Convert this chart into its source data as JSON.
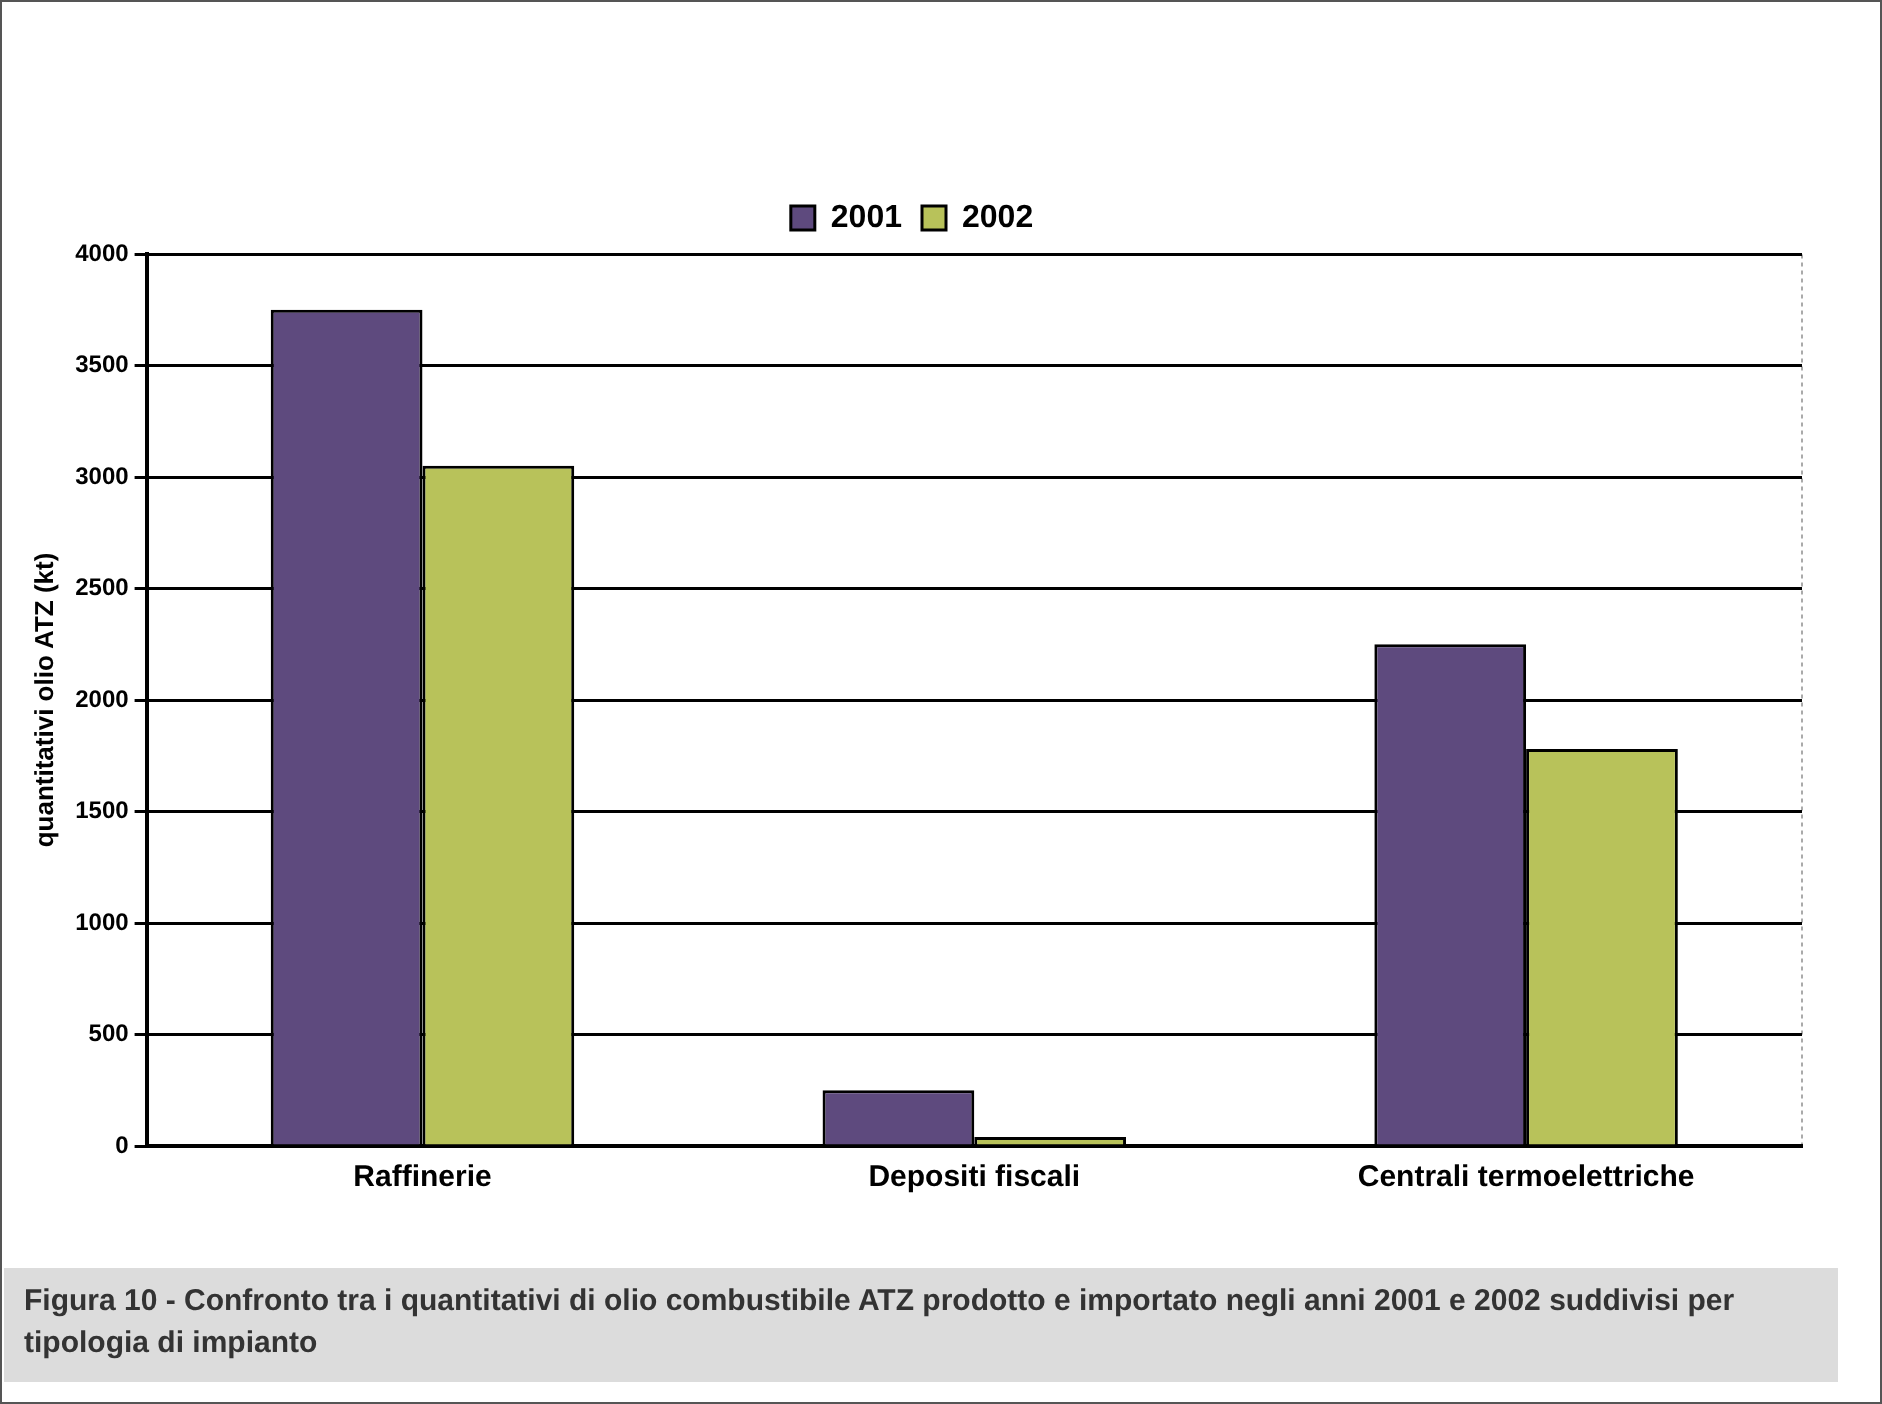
{
  "chart_data": {
    "type": "bar",
    "ylabel": "quantitativi olio ATZ (kt)",
    "categories": [
      "Raffinerie",
      "Depositi fiscali",
      "Centrali termoelettriche"
    ],
    "series": [
      {
        "name": "2001",
        "color": "#5e4a7e",
        "values": [
          3750,
          250,
          2250
        ]
      },
      {
        "name": "2002",
        "color": "#b8c25a",
        "values": [
          3050,
          40,
          1780
        ]
      }
    ],
    "ylim": [
      0,
      4000
    ],
    "yticks": [
      0,
      500,
      1000,
      1500,
      2000,
      2500,
      3000,
      3500,
      4000
    ],
    "grid": "y",
    "legend": "top right",
    "annotations": [
      "Figura 10 - Confronto tra i quantitativi di olio combustibile ATZ prodotto e importato negli anni 2001 e 2002 suddivisi per tipologia di impianto"
    ]
  }
}
